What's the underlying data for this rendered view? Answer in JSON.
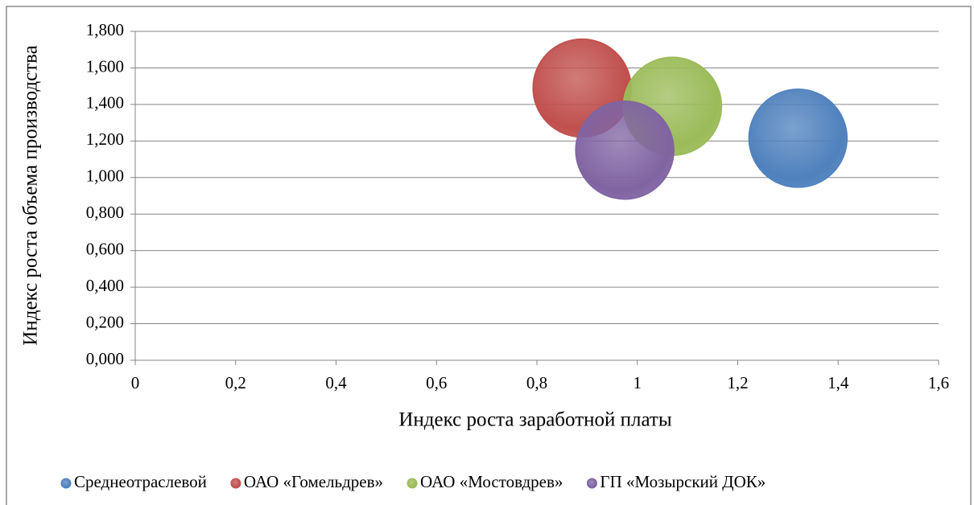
{
  "chart_data": {
    "type": "bubble",
    "x_label": "Индекс роста заработной платы",
    "y_label": "Индекс роста объема производства",
    "series": [
      {
        "name": "Среднеотраслевой",
        "color": "#4f81bd",
        "x": [
          1.32
        ],
        "values": [
          1.215
        ],
        "sizes": [
          1
        ]
      },
      {
        "name": "ОАО «Гомельдрев»",
        "color": "#c0504d",
        "x": [
          0.89
        ],
        "values": [
          1.49
        ],
        "sizes": [
          1
        ]
      },
      {
        "name": "ОАО «Мостовдрев»",
        "color": "#9bbb59",
        "x": [
          1.07
        ],
        "values": [
          1.39
        ],
        "sizes": [
          1
        ]
      },
      {
        "name": "ГП «Мозырский ДОК»",
        "color": "#8064a2",
        "x": [
          0.975
        ],
        "values": [
          1.15
        ],
        "sizes": [
          1
        ]
      }
    ],
    "xlim": [
      0,
      1.6
    ],
    "xticks": [
      0,
      {
        "value": 0.2,
        "label": "0,2"
      },
      {
        "value": 0.4,
        "label": "0,4"
      },
      {
        "value": 0.6,
        "label": "0,6"
      },
      {
        "value": 0.8,
        "label": "0,8"
      },
      1,
      {
        "value": 1.2,
        "label": "1,2"
      },
      {
        "value": 1.4,
        "label": "1,4"
      },
      {
        "value": 1.6,
        "label": "1,6"
      }
    ],
    "ylim": [
      0,
      1.8
    ],
    "yticks": [
      {
        "value": 0,
        "label": "0,000"
      },
      {
        "value": 0.2,
        "label": "0,200"
      },
      {
        "value": 0.4,
        "label": "0,400"
      },
      {
        "value": 0.6,
        "label": "0,600"
      },
      {
        "value": 0.8,
        "label": "0,800"
      },
      {
        "value": 1,
        "label": "1,000"
      },
      {
        "value": 1.2,
        "label": "1,200"
      },
      {
        "value": 1.4,
        "label": "1,400"
      },
      {
        "value": 1.6,
        "label": "1,600"
      },
      {
        "value": 1.8,
        "label": "1,800"
      }
    ],
    "grid": true,
    "legend": "bottom"
  }
}
